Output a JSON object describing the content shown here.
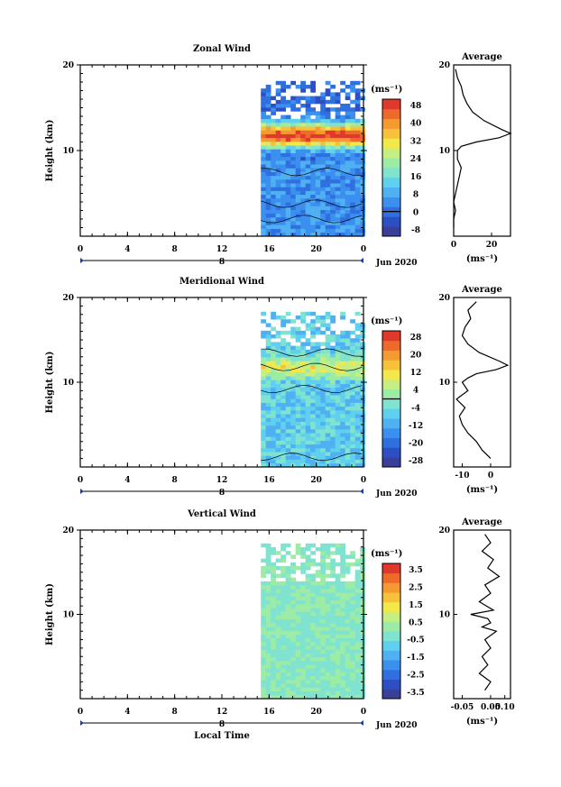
{
  "colors": {
    "palette": [
      "#3a3f9a",
      "#2e4fc4",
      "#2f6fe0",
      "#3b8fef",
      "#4fb0f2",
      "#5fd0ee",
      "#7fe3d0",
      "#9ceca6",
      "#c6ee80",
      "#f2e84a",
      "#f7c23a",
      "#f59a30",
      "#ee6a2a",
      "#e0382a"
    ],
    "pageBackground": "#ffffff"
  },
  "axisLabels": {
    "height": "Height (km)",
    "localTime": "Local Time",
    "units": "(ms⁻¹)",
    "averageTitle": "Average",
    "dateLabel": "Jun 2020"
  },
  "chart_data": [
    {
      "type": "heatmap",
      "title": "Zonal Wind",
      "ylabel": "Height (km)",
      "ylim": [
        0,
        20
      ],
      "yticks": [
        "20",
        "10"
      ],
      "xlim": [
        0,
        24
      ],
      "xticks": [
        "0",
        "4",
        "8",
        "12",
        "16",
        "20",
        "0"
      ],
      "dateMarker": "8",
      "data_local_time_range": [
        15,
        24
      ],
      "colorbar": {
        "units": "(ms⁻¹)",
        "ticks": [
          "48",
          "40",
          "32",
          "24",
          "16",
          "8",
          "0",
          "-8"
        ],
        "range": [
          -8,
          48
        ]
      },
      "average": {
        "title": "Average",
        "xticks": [
          "0",
          "20"
        ],
        "xlim": [
          0,
          30
        ],
        "xlabel": "(ms⁻¹)",
        "profile": [
          [
            19.5,
            1
          ],
          [
            18.5,
            2
          ],
          [
            17.5,
            4
          ],
          [
            16.5,
            5
          ],
          [
            15.5,
            7
          ],
          [
            14.5,
            10
          ],
          [
            13.5,
            16
          ],
          [
            12.5,
            25
          ],
          [
            12,
            30
          ],
          [
            11.5,
            24
          ],
          [
            11,
            12
          ],
          [
            10.5,
            4
          ],
          [
            10,
            2
          ],
          [
            9,
            2
          ],
          [
            8,
            4
          ],
          [
            7,
            3
          ],
          [
            6,
            2
          ],
          [
            5,
            1
          ],
          [
            4,
            0
          ],
          [
            3,
            1
          ],
          [
            2,
            0
          ],
          [
            1,
            0
          ]
        ]
      }
    },
    {
      "type": "heatmap",
      "title": "Meridional Wind",
      "ylabel": "Height (km)",
      "ylim": [
        0,
        20
      ],
      "yticks": [
        "20",
        "10"
      ],
      "xlim": [
        0,
        24
      ],
      "xticks": [
        "0",
        "4",
        "8",
        "12",
        "16",
        "20",
        "0"
      ],
      "dateMarker": "8",
      "data_local_time_range": [
        15,
        24
      ],
      "colorbar": {
        "units": "(ms⁻¹)",
        "ticks": [
          "28",
          "20",
          "12",
          "4",
          "-4",
          "-12",
          "-20",
          "-28"
        ],
        "range": [
          -28,
          28
        ]
      },
      "average": {
        "title": "Average",
        "xticks": [
          "-10",
          "0"
        ],
        "xlim": [
          -13,
          7
        ],
        "xlabel": "(ms⁻¹)",
        "profile": [
          [
            19.5,
            -5
          ],
          [
            18.5,
            -8
          ],
          [
            17.5,
            -7
          ],
          [
            16.5,
            -9
          ],
          [
            15.5,
            -10
          ],
          [
            14.5,
            -8
          ],
          [
            13.5,
            -4
          ],
          [
            12.5,
            3
          ],
          [
            12,
            6
          ],
          [
            11.5,
            2
          ],
          [
            11,
            -5
          ],
          [
            10.5,
            -8
          ],
          [
            10,
            -10
          ],
          [
            9,
            -8
          ],
          [
            8,
            -12
          ],
          [
            7,
            -9
          ],
          [
            6,
            -11
          ],
          [
            5,
            -10
          ],
          [
            4,
            -8
          ],
          [
            3,
            -5
          ],
          [
            2,
            -3
          ],
          [
            1,
            0
          ]
        ]
      }
    },
    {
      "type": "heatmap",
      "title": "Vertical Wind",
      "ylabel": "Height (km)",
      "ylim": [
        0,
        20
      ],
      "yticks": [
        "20",
        "10"
      ],
      "xlim": [
        0,
        24
      ],
      "xticks": [
        "0",
        "4",
        "8",
        "12",
        "16",
        "20",
        "0"
      ],
      "xlabel": "Local Time",
      "dateMarker": "8",
      "data_local_time_range": [
        15,
        24
      ],
      "colorbar": {
        "units": "(ms⁻¹)",
        "ticks": [
          "3.5",
          "2.5",
          "1.5",
          "0.5",
          "-0.5",
          "-1.5",
          "-2.5",
          "-3.5"
        ],
        "range": [
          -3.5,
          3.5
        ]
      },
      "average": {
        "title": "Average",
        "xticks": [
          "-0.05",
          "0.05",
          "0.10"
        ],
        "xlim": [
          -0.08,
          0.12
        ],
        "xlabel": "(ms⁻¹)",
        "profile": [
          [
            19.5,
            0.03
          ],
          [
            18.5,
            0.05
          ],
          [
            17.5,
            0.02
          ],
          [
            16.5,
            0.06
          ],
          [
            15.5,
            0.04
          ],
          [
            14.5,
            0.08
          ],
          [
            13.5,
            0.03
          ],
          [
            12.5,
            0.05
          ],
          [
            11.5,
            0.01
          ],
          [
            10.5,
            0.06
          ],
          [
            10,
            -0.02
          ],
          [
            9.5,
            0.04
          ],
          [
            9,
            0.05
          ],
          [
            8.5,
            0.02
          ],
          [
            8,
            0.07
          ],
          [
            7,
            0.03
          ],
          [
            6,
            0.05
          ],
          [
            5,
            0.02
          ],
          [
            4,
            0.04
          ],
          [
            3,
            0.01
          ],
          [
            2,
            0.05
          ],
          [
            1,
            0.03
          ]
        ]
      }
    }
  ]
}
